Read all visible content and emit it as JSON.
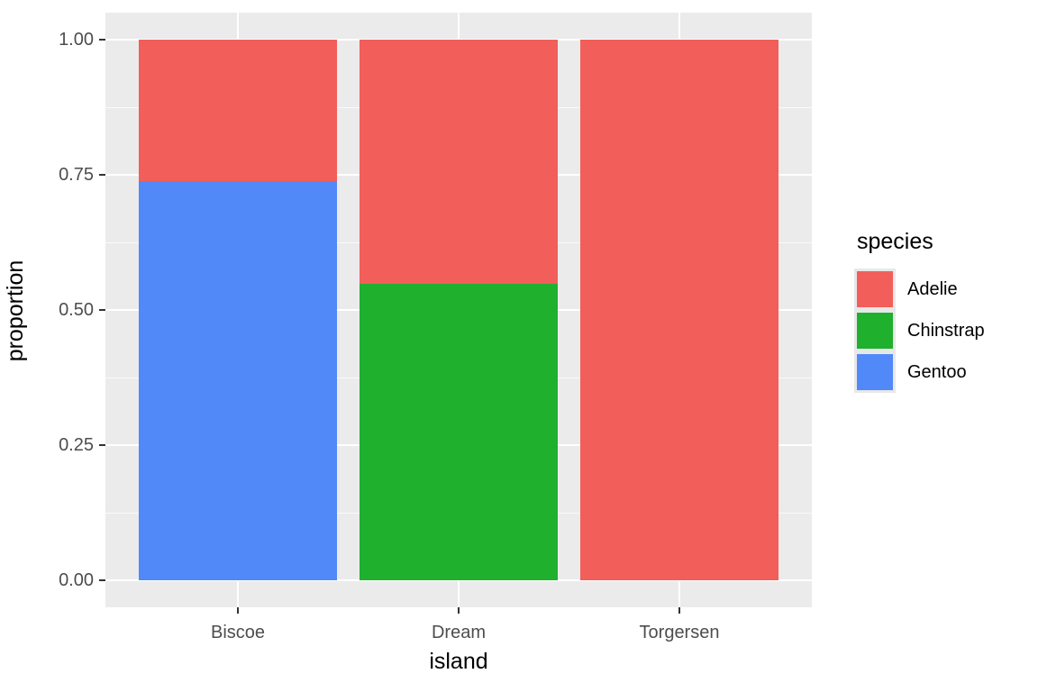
{
  "chart_data": {
    "type": "bar",
    "stacked": true,
    "orientation": "vertical",
    "title": "",
    "xlabel": "island",
    "ylabel": "proportion",
    "categories": [
      "Biscoe",
      "Dream",
      "Torgersen"
    ],
    "series": [
      {
        "name": "Adelie",
        "color": "#f25e59",
        "values": [
          0.262,
          0.452,
          1.0
        ]
      },
      {
        "name": "Chinstrap",
        "color": "#1fb02e",
        "values": [
          0.0,
          0.548,
          0.0
        ]
      },
      {
        "name": "Gentoo",
        "color": "#5189f8",
        "values": [
          0.738,
          0.0,
          0.0
        ]
      }
    ],
    "stack_order_bottom_to_top": [
      "Gentoo",
      "Chinstrap",
      "Adelie"
    ],
    "ylim": [
      0,
      1
    ],
    "yticks": [
      0,
      0.25,
      0.5,
      0.75,
      1.0
    ],
    "ytick_labels": [
      "0.00",
      "0.25",
      "0.50",
      "0.75",
      "1.00"
    ],
    "yminor_ticks": [
      0.125,
      0.375,
      0.625,
      0.875
    ],
    "grid": "on",
    "legend": {
      "title": "species",
      "position": "right",
      "entries": [
        "Adelie",
        "Chinstrap",
        "Gentoo"
      ]
    },
    "theme": {
      "panel_bg": "#ebebeb",
      "grid_color": "#ffffff",
      "tick_color": "#333333",
      "tick_label_color": "#4d4d4d",
      "axis_title_color": "#000000",
      "legend_key_bg": "#e8e8e8",
      "figure_bg": "#ffffff"
    }
  }
}
